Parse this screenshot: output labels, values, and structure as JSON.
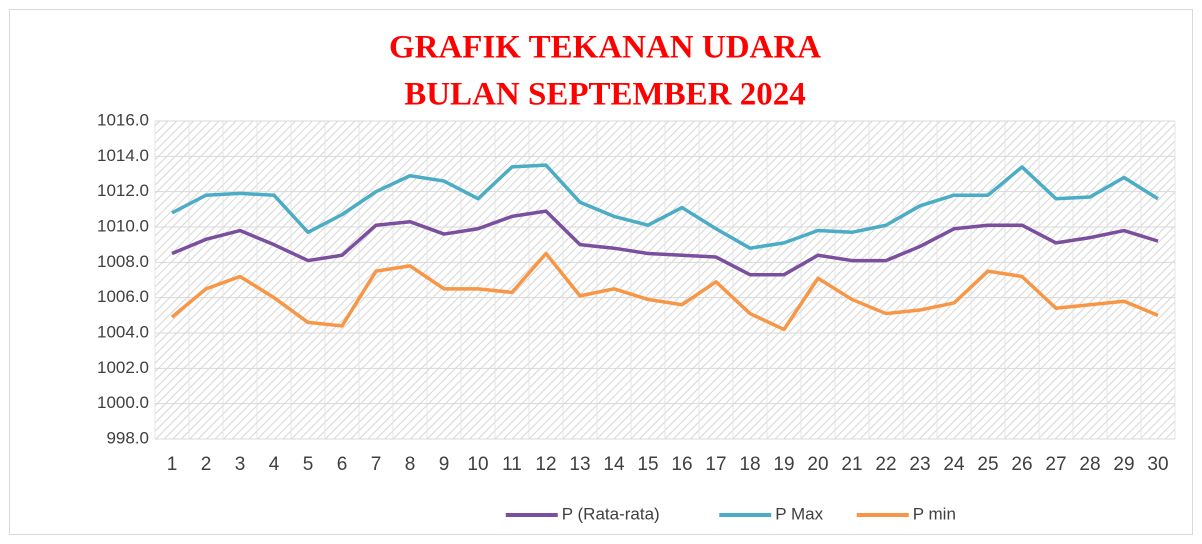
{
  "chart_data": {
    "type": "line",
    "title": [
      "GRAFIK TEKANAN UDARA",
      "BULAN SEPTEMBER 2024"
    ],
    "categories": [
      "1",
      "2",
      "3",
      "4",
      "5",
      "6",
      "7",
      "8",
      "9",
      "10",
      "11",
      "12",
      "13",
      "14",
      "15",
      "16",
      "17",
      "18",
      "19",
      "20",
      "21",
      "22",
      "23",
      "24",
      "25",
      "26",
      "27",
      "28",
      "29",
      "30"
    ],
    "series": [
      {
        "name": "P (Rata-rata)",
        "color": "#7b4f9d",
        "values": [
          1008.5,
          1009.3,
          1009.8,
          1009.0,
          1008.1,
          1008.4,
          1010.1,
          1010.3,
          1009.6,
          1009.9,
          1010.6,
          1010.9,
          1009.0,
          1008.8,
          1008.5,
          1008.4,
          1008.3,
          1007.3,
          1007.3,
          1008.4,
          1008.1,
          1008.1,
          1008.9,
          1009.9,
          1010.1,
          1010.1,
          1009.1,
          1009.4,
          1009.8,
          1009.2
        ]
      },
      {
        "name": "P Max",
        "color": "#4bacc6",
        "values": [
          1010.8,
          1011.8,
          1011.9,
          1011.8,
          1009.7,
          1010.7,
          1012.0,
          1012.9,
          1012.6,
          1011.6,
          1013.4,
          1013.5,
          1011.4,
          1010.6,
          1010.1,
          1011.1,
          1009.9,
          1008.8,
          1009.1,
          1009.8,
          1009.7,
          1010.1,
          1011.2,
          1011.8,
          1011.8,
          1013.4,
          1011.6,
          1011.7,
          1012.8,
          1011.6
        ]
      },
      {
        "name": "P min",
        "color": "#f79646",
        "values": [
          1004.9,
          1006.5,
          1007.2,
          1006.0,
          1004.6,
          1004.4,
          1007.5,
          1007.8,
          1006.5,
          1006.5,
          1006.3,
          1008.5,
          1006.1,
          1006.5,
          1005.9,
          1005.6,
          1006.9,
          1005.1,
          1004.2,
          1007.1,
          1005.9,
          1005.1,
          1005.3,
          1005.7,
          1007.5,
          1007.2,
          1005.4,
          1005.6,
          1005.8,
          1005.0
        ]
      }
    ],
    "ylim": [
      998,
      1016
    ],
    "yticks": [
      {
        "value": 998,
        "label": "998.0"
      },
      {
        "value": 1000,
        "label": "1000.0"
      },
      {
        "value": 1002,
        "label": "1002.0"
      },
      {
        "value": 1004,
        "label": "1004.0"
      },
      {
        "value": 1006,
        "label": "1006.0"
      },
      {
        "value": 1008,
        "label": "1008.0"
      },
      {
        "value": 1010,
        "label": "1010.0"
      },
      {
        "value": 1012,
        "label": "1012.0"
      },
      {
        "value": 1014,
        "label": "1014.0"
      },
      {
        "value": 1016,
        "label": "1016.0"
      }
    ],
    "grid": true,
    "legend": "bottom"
  }
}
